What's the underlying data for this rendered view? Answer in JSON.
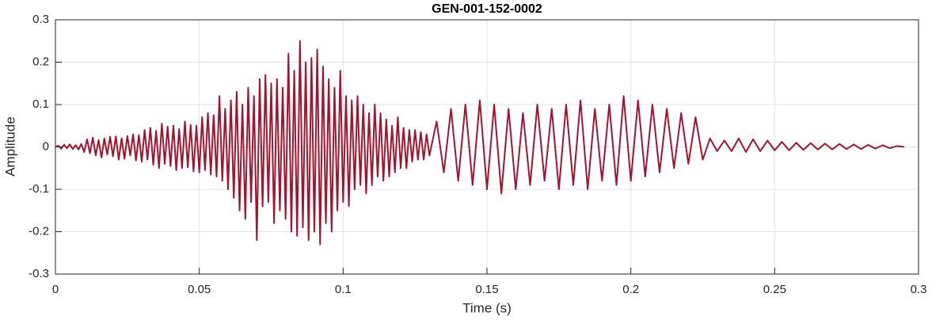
{
  "chart_data": {
    "type": "line",
    "title": "GEN-001-152-0002",
    "x_label": "Time (s)",
    "y_label": "Amplitude",
    "color": "#a2142f",
    "grid": true,
    "xlim": [
      0,
      0.3
    ],
    "xticks": [
      0,
      0.05,
      0.1,
      0.15,
      0.2,
      0.25,
      0.3
    ],
    "ylim": [
      -0.3,
      0.3
    ],
    "yticks": [
      -0.3,
      -0.2,
      -0.1,
      0,
      0.1,
      0.2,
      0.3
    ],
    "x": [
      0,
      0.001,
      0.002,
      0.003,
      0.004,
      0.005,
      0.006,
      0.007,
      0.008,
      0.009,
      0.01,
      0.011,
      0.012,
      0.013,
      0.014,
      0.015,
      0.016,
      0.017,
      0.018,
      0.019,
      0.02,
      0.021,
      0.022,
      0.023,
      0.024,
      0.025,
      0.026,
      0.027,
      0.028,
      0.029,
      0.03,
      0.031,
      0.032,
      0.033,
      0.034,
      0.035,
      0.036,
      0.037,
      0.038,
      0.039,
      0.04,
      0.041,
      0.042,
      0.043,
      0.044,
      0.045,
      0.046,
      0.047,
      0.048,
      0.049,
      0.05,
      0.051,
      0.052,
      0.053,
      0.054,
      0.055,
      0.056,
      0.057,
      0.058,
      0.059,
      0.06,
      0.061,
      0.062,
      0.063,
      0.064,
      0.065,
      0.066,
      0.067,
      0.068,
      0.069,
      0.07,
      0.071,
      0.072,
      0.073,
      0.074,
      0.075,
      0.076,
      0.077,
      0.078,
      0.079,
      0.08,
      0.081,
      0.082,
      0.083,
      0.084,
      0.085,
      0.086,
      0.087,
      0.088,
      0.089,
      0.09,
      0.091,
      0.092,
      0.093,
      0.094,
      0.095,
      0.096,
      0.097,
      0.098,
      0.099,
      0.1,
      0.101,
      0.102,
      0.103,
      0.104,
      0.105,
      0.106,
      0.107,
      0.108,
      0.109,
      0.11,
      0.111,
      0.112,
      0.113,
      0.114,
      0.115,
      0.116,
      0.117,
      0.118,
      0.119,
      0.12,
      0.121,
      0.122,
      0.123,
      0.124,
      0.125,
      0.126,
      0.127,
      0.128,
      0.129,
      0.13,
      0.1325,
      0.135,
      0.1375,
      0.14,
      0.1425,
      0.145,
      0.1475,
      0.15,
      0.1525,
      0.155,
      0.1575,
      0.16,
      0.1625,
      0.165,
      0.1675,
      0.17,
      0.1725,
      0.175,
      0.1775,
      0.18,
      0.1825,
      0.185,
      0.1875,
      0.19,
      0.1925,
      0.195,
      0.1975,
      0.2,
      0.2025,
      0.205,
      0.2075,
      0.21,
      0.2125,
      0.215,
      0.2175,
      0.22,
      0.2225,
      0.225,
      0.2275,
      0.23,
      0.2325,
      0.235,
      0.2375,
      0.24,
      0.2425,
      0.245,
      0.2475,
      0.25,
      0.2525,
      0.255,
      0.2575,
      0.26,
      0.2625,
      0.265,
      0.2675,
      0.27,
      0.2725,
      0.275,
      0.2775,
      0.28,
      0.2825,
      0.285,
      0.2875,
      0.29,
      0.2925,
      0.295
    ],
    "values": [
      0,
      0.003,
      -0.004,
      0.005,
      -0.003,
      0.006,
      -0.005,
      0.004,
      -0.006,
      0.007,
      -0.012,
      0.018,
      -0.015,
      0.022,
      -0.02,
      0.016,
      -0.025,
      0.02,
      -0.018,
      0.024,
      -0.022,
      0.025,
      -0.03,
      0.02,
      -0.028,
      0.026,
      -0.02,
      0.03,
      -0.032,
      0.028,
      -0.035,
      0.04,
      -0.03,
      0.045,
      -0.042,
      0.038,
      -0.05,
      0.055,
      -0.04,
      0.048,
      -0.045,
      0.05,
      -0.055,
      0.042,
      -0.05,
      0.06,
      -0.048,
      0.052,
      -0.058,
      0.05,
      -0.06,
      0.07,
      -0.055,
      0.08,
      -0.065,
      0.075,
      -0.07,
      0.12,
      -0.08,
      0.09,
      -0.1,
      0.11,
      -0.12,
      0.13,
      -0.15,
      0.1,
      -0.17,
      0.14,
      -0.13,
      0.12,
      -0.22,
      0.16,
      -0.14,
      0.17,
      -0.13,
      0.15,
      -0.18,
      0.16,
      -0.15,
      0.14,
      -0.17,
      0.22,
      -0.2,
      0.18,
      -0.21,
      0.25,
      -0.19,
      0.2,
      -0.22,
      0.21,
      -0.2,
      0.23,
      -0.23,
      0.19,
      -0.18,
      0.16,
      -0.2,
      0.14,
      -0.15,
      0.18,
      -0.13,
      0.12,
      -0.14,
      0.11,
      -0.1,
      0.12,
      -0.09,
      0.1,
      -0.11,
      0.08,
      -0.09,
      0.1,
      -0.07,
      0.08,
      -0.08,
      0.065,
      -0.07,
      0.05,
      -0.06,
      0.07,
      -0.05,
      0.045,
      -0.05,
      0.04,
      -0.035,
      0.04,
      -0.03,
      0.035,
      -0.03,
      0.03,
      -0.02,
      0.06,
      -0.06,
      0.09,
      -0.08,
      0.1,
      -0.09,
      0.11,
      -0.1,
      0.1,
      -0.11,
      0.09,
      -0.1,
      0.08,
      -0.09,
      0.1,
      -0.08,
      0.09,
      -0.1,
      0.1,
      -0.09,
      0.11,
      -0.1,
      0.09,
      -0.08,
      0.1,
      -0.09,
      0.12,
      -0.08,
      0.11,
      -0.07,
      0.1,
      -0.06,
      0.09,
      -0.05,
      0.08,
      -0.04,
      0.07,
      -0.03,
      0.02,
      -0.01,
      0.015,
      -0.01,
      0.02,
      -0.012,
      0.018,
      -0.01,
      0.015,
      -0.008,
      0.012,
      -0.008,
      0.01,
      -0.007,
      0.009,
      -0.006,
      0.008,
      -0.006,
      0.007,
      -0.005,
      0.006,
      -0.005,
      0.005,
      -0.004,
      0.004,
      -0.003,
      0.002,
      0
    ]
  }
}
